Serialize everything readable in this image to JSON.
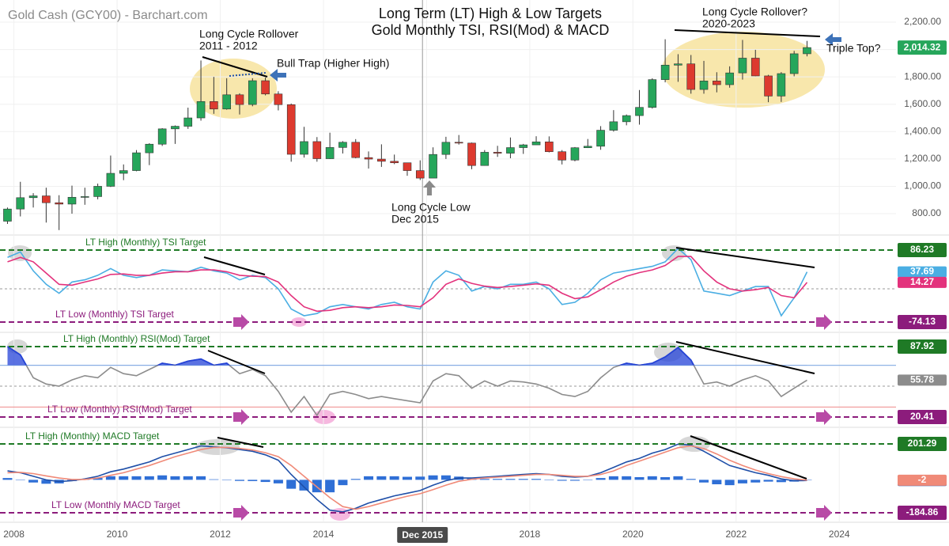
{
  "chart_data": {
    "type": "candlestick",
    "source": "Gold Cash (GCY00) - Barchart.com",
    "title": "Long Term (LT) High & Low Targets",
    "subtitle": "Gold Monthly TSI, RSI(Mod) & MACD",
    "annotations": [
      "Long Cycle Rollover",
      "2011 - 2012",
      "Bull Trap (Higher High)",
      "Long Cycle Low",
      "Dec 2015",
      "Long Cycle Rollover?",
      "2020-2023",
      "Triple Top?"
    ],
    "grid": true,
    "up_color": "#26a65b",
    "down_color": "#dd3a2f",
    "xlim": [
      2007.73,
      2025.1
    ],
    "xticks": [
      2008,
      2010,
      2012,
      2014,
      2016,
      2018,
      2020,
      2022,
      2024
    ],
    "crosshair": {
      "value": 2015.92,
      "label": "Dec 2015"
    },
    "x": [
      2007.875,
      2008.125,
      2008.375,
      2008.625,
      2008.875,
      2009.125,
      2009.375,
      2009.625,
      2009.875,
      2010.125,
      2010.375,
      2010.625,
      2010.875,
      2011.125,
      2011.375,
      2011.625,
      2011.875,
      2012.125,
      2012.375,
      2012.625,
      2012.875,
      2013.125,
      2013.375,
      2013.625,
      2013.875,
      2014.125,
      2014.375,
      2014.625,
      2014.875,
      2015.125,
      2015.375,
      2015.625,
      2015.875,
      2016.125,
      2016.375,
      2016.625,
      2016.875,
      2017.125,
      2017.375,
      2017.625,
      2017.875,
      2018.125,
      2018.375,
      2018.625,
      2018.875,
      2019.125,
      2019.375,
      2019.625,
      2019.875,
      2020.125,
      2020.375,
      2020.625,
      2020.875,
      2021.125,
      2021.375,
      2021.625,
      2021.875,
      2022.125,
      2022.375,
      2022.625,
      2022.875,
      2023.125,
      2023.375
    ],
    "open": [
      745,
      834,
      917,
      930,
      880,
      870,
      920,
      925,
      1000,
      1095,
      1115,
      1245,
      1308,
      1420,
      1439,
      1500,
      1620,
      1565,
      1669,
      1598,
      1772,
      1675,
      1597,
      1234,
      1327,
      1202,
      1284,
      1322,
      1210,
      1199,
      1183,
      1172,
      1115,
      1060,
      1233,
      1322,
      1316,
      1152,
      1249,
      1242,
      1283,
      1303,
      1325,
      1253,
      1192,
      1282,
      1293,
      1410,
      1472,
      1517,
      1577,
      1780,
      1886,
      1895,
      1708,
      1770,
      1743,
      1829,
      1937,
      1807,
      1660,
      1824,
      1969
    ],
    "high": [
      845,
      1033,
      950,
      990,
      935,
      1005,
      990,
      1020,
      1225,
      1160,
      1265,
      1315,
      1425,
      1445,
      1575,
      1920,
      1800,
      1790,
      1680,
      1790,
      1795,
      1695,
      1605,
      1435,
      1360,
      1392,
      1330,
      1345,
      1255,
      1307,
      1232,
      1170,
      1190,
      1285,
      1362,
      1375,
      1320,
      1265,
      1296,
      1357,
      1310,
      1366,
      1365,
      1265,
      1287,
      1346,
      1440,
      1557,
      1525,
      1704,
      1790,
      2075,
      1966,
      1960,
      1917,
      1834,
      1877,
      2070,
      1998,
      1815,
      1835,
      1990,
      2063
    ],
    "low": [
      725,
      780,
      845,
      735,
      680,
      800,
      865,
      905,
      995,
      1045,
      1110,
      1155,
      1295,
      1310,
      1420,
      1480,
      1530,
      1560,
      1525,
      1585,
      1665,
      1555,
      1180,
      1210,
      1180,
      1200,
      1240,
      1205,
      1130,
      1142,
      1162,
      1077,
      1046,
      1062,
      1200,
      1305,
      1125,
      1150,
      1215,
      1205,
      1237,
      1303,
      1248,
      1160,
      1183,
      1280,
      1267,
      1400,
      1446,
      1451,
      1568,
      1760,
      1764,
      1677,
      1677,
      1687,
      1721,
      1780,
      1805,
      1615,
      1617,
      1804,
      1950
    ],
    "close": [
      834,
      917,
      930,
      880,
      870,
      920,
      925,
      1000,
      1095,
      1115,
      1245,
      1308,
      1420,
      1439,
      1500,
      1620,
      1565,
      1669,
      1598,
      1772,
      1675,
      1597,
      1234,
      1327,
      1202,
      1284,
      1322,
      1210,
      1199,
      1183,
      1172,
      1115,
      1060,
      1233,
      1322,
      1316,
      1152,
      1249,
      1242,
      1283,
      1303,
      1325,
      1253,
      1192,
      1282,
      1293,
      1410,
      1472,
      1517,
      1577,
      1780,
      1886,
      1895,
      1708,
      1770,
      1743,
      1829,
      1937,
      1807,
      1660,
      1824,
      1969,
      2014.32
    ],
    "ylim": [
      644,
      2362
    ],
    "yticks": [
      {
        "value": 800,
        "label": "800.00"
      },
      {
        "value": 1000,
        "label": "1,000.00"
      },
      {
        "value": 1200,
        "label": "1,200.00"
      },
      {
        "value": 1400,
        "label": "1,400.00"
      },
      {
        "value": 1600,
        "label": "1,600.00"
      },
      {
        "value": 1800,
        "label": "1,800.00"
      },
      {
        "value": 2000,
        "label": "2,000.00"
      },
      {
        "value": 2200,
        "label": "2,200.00"
      }
    ],
    "last": {
      "value": 2014.32,
      "label": "2,014.32"
    },
    "indicators": [
      {
        "type": "line",
        "ylim": [
          -97,
          118
        ],
        "levels": [
          {
            "value": 0,
            "color": "#9a9a9a",
            "style": "dotted"
          }
        ],
        "hlines": [
          {
            "value": 86.23,
            "label": "LT High (Monthly) TSI Target",
            "color": "#1f7a26"
          },
          {
            "value": -74.13,
            "label": "LT Low (Monthly) TSI Target",
            "color": "#8c1c7c"
          }
        ],
        "series": [
          {
            "color": "#4aaee3",
            "values": [
              70,
              82,
              40,
              10,
              -10,
              15,
              20,
              30,
              45,
              30,
              25,
              30,
              42,
              40,
              38,
              48,
              40,
              35,
              20,
              30,
              25,
              0,
              -45,
              -60,
              -55,
              -40,
              -35,
              -40,
              -45,
              -35,
              -30,
              -40,
              -45,
              15,
              40,
              30,
              -5,
              5,
              0,
              10,
              10,
              15,
              0,
              -35,
              -30,
              -10,
              20,
              35,
              40,
              45,
              50,
              60,
              90,
              65,
              -5,
              -10,
              -15,
              -5,
              5,
              5,
              -60,
              -20,
              37.69
            ]
          },
          {
            "color": "#e3327c",
            "values": [
              60,
              70,
              60,
              35,
              10,
              8,
              15,
              22,
              32,
              33,
              30,
              30,
              35,
              38,
              38,
              42,
              42,
              38,
              30,
              28,
              27,
              15,
              -15,
              -40,
              -50,
              -48,
              -42,
              -40,
              -42,
              -40,
              -36,
              -37,
              -40,
              -20,
              10,
              22,
              12,
              6,
              3,
              5,
              8,
              11,
              8,
              -10,
              -22,
              -18,
              -2,
              15,
              28,
              36,
              42,
              52,
              72,
              72,
              40,
              15,
              0,
              -5,
              -2,
              3,
              -15,
              -20,
              14.27
            ]
          }
        ]
      },
      {
        "type": "line",
        "ylim": [
          10.5,
          101.6
        ],
        "levels": [
          {
            "value": 50,
            "color": "#9a9a9a",
            "style": "dotted"
          },
          {
            "value": 30,
            "color": "#ef8a8a",
            "style": "solid"
          }
        ],
        "highlight": {
          "level": 70,
          "color": "#2443d8",
          "line_color": "#8fb4e6"
        },
        "hlines": [
          {
            "value": 87.92,
            "label": "LT High (Monthly) RSI(Mod) Target",
            "color": "#1f7a26"
          },
          {
            "value": 20.41,
            "label": "LT Low (Monthly) RSI(Mod) Target",
            "color": "#8c1c7c"
          }
        ],
        "series": [
          {
            "color": "#8c8c8c",
            "values": [
              88,
              80,
              58,
              52,
              50,
              56,
              60,
              58,
              68,
              62,
              60,
              66,
              72,
              70,
              74,
              76,
              70,
              72,
              62,
              66,
              60,
              45,
              25,
              40,
              22,
              42,
              45,
              42,
              38,
              40,
              38,
              36,
              34,
              55,
              62,
              60,
              48,
              55,
              50,
              55,
              54,
              52,
              48,
              42,
              40,
              45,
              58,
              68,
              72,
              70,
              72,
              78,
              87,
              75,
              52,
              54,
              50,
              56,
              60,
              55,
              40,
              48,
              55.78
            ]
          }
        ]
      },
      {
        "type": "line",
        "ylim": [
          -238,
          294.5
        ],
        "levels": [],
        "hlines": [
          {
            "value": 201.29,
            "label": "LT High (Monthly) MACD Target",
            "color": "#1f7a26"
          },
          {
            "value": -184.86,
            "label": "LT Low (Monthly MACD Target",
            "color": "#8c1c7c"
          }
        ],
        "histogram": {
          "color": "#2f6fd6",
          "values": [
            10,
            -2,
            -15,
            -22,
            -20,
            -7,
            3,
            10,
            20,
            20,
            20,
            20,
            25,
            20,
            20,
            20,
            3,
            -2,
            -6,
            -7,
            -12,
            -20,
            -50,
            -60,
            -70,
            -70,
            -30,
            5,
            20,
            20,
            20,
            17,
            18,
            25,
            25,
            18,
            7,
            5,
            5,
            5,
            5,
            5,
            0,
            -5,
            -5,
            0,
            10,
            20,
            20,
            15,
            20,
            15,
            20,
            5,
            -15,
            -25,
            -30,
            -20,
            -15,
            -10,
            -13,
            -10,
            -1.76
          ]
        },
        "series": [
          {
            "color": "#1f4fa8",
            "values": [
              50,
              40,
              20,
              0,
              -10,
              -5,
              5,
              20,
              45,
              60,
              80,
              100,
              130,
              150,
              170,
              190,
              185,
              180,
              170,
              160,
              140,
              110,
              30,
              -40,
              -110,
              -170,
              -180,
              -160,
              -130,
              -110,
              -90,
              -75,
              -60,
              -30,
              -5,
              10,
              10,
              15,
              20,
              25,
              30,
              35,
              30,
              20,
              15,
              20,
              40,
              70,
              100,
              120,
              150,
              170,
              200,
              195,
              160,
              120,
              80,
              60,
              40,
              25,
              5,
              -5,
              -3.76
            ]
          },
          {
            "color": "#f08a78",
            "values": [
              40,
              42,
              35,
              22,
              10,
              2,
              2,
              10,
              25,
              40,
              60,
              80,
              105,
              130,
              150,
              170,
              182,
              182,
              176,
              167,
              152,
              130,
              80,
              20,
              -40,
              -100,
              -150,
              -165,
              -150,
              -130,
              -110,
              -92,
              -78,
              -55,
              -30,
              -8,
              3,
              10,
              15,
              20,
              25,
              30,
              30,
              25,
              20,
              20,
              30,
              50,
              80,
              105,
              130,
              155,
              180,
              190,
              175,
              145,
              110,
              80,
              55,
              35,
              18,
              5,
              -2
            ]
          }
        ]
      }
    ]
  }
}
